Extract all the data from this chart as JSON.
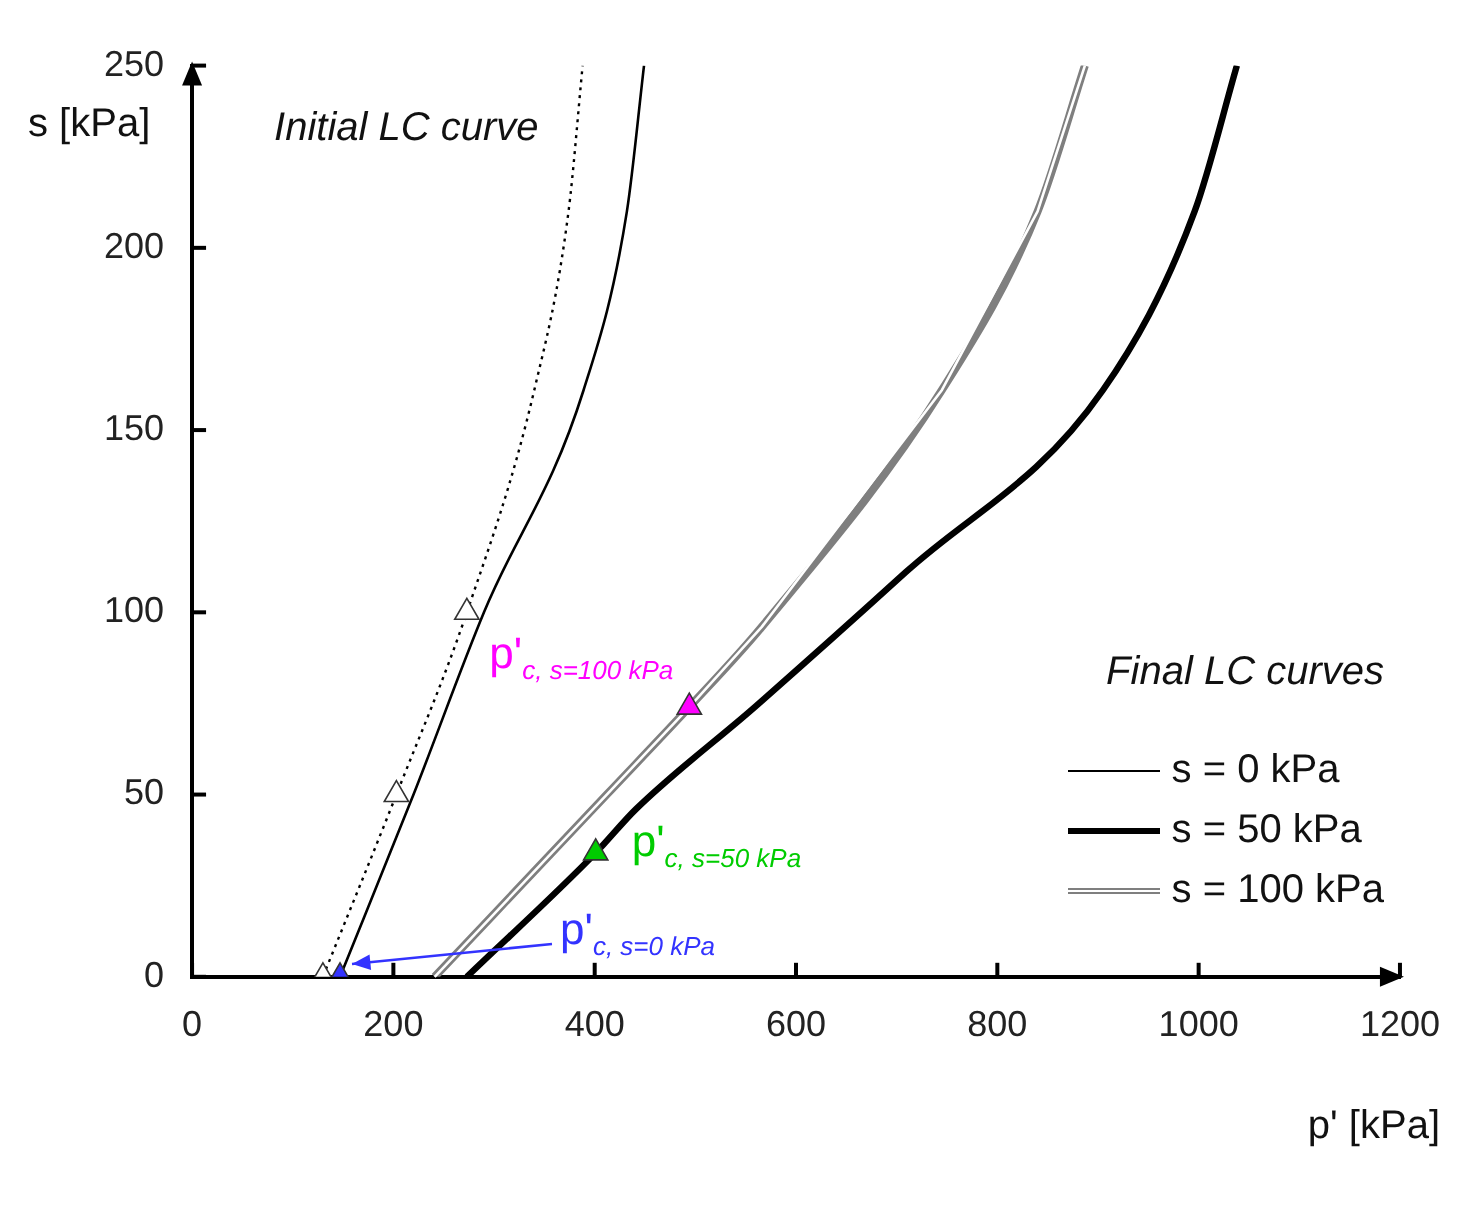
{
  "chart_data": {
    "type": "line",
    "xlabel": "p' [kPa]",
    "ylabel": "s [kPa]",
    "legend_title": "Final LC curves",
    "legend": "bottom right",
    "grid": false,
    "marker": "none",
    "xlim": [
      0,
      1200
    ],
    "xticks": [
      0,
      200,
      400,
      600,
      800,
      1000,
      1200
    ],
    "ylim": [
      0,
      250
    ],
    "yticks": [
      0,
      50,
      100,
      150,
      200,
      250
    ],
    "series": [
      {
        "name": "Initial LC curve",
        "line_style": "dotted",
        "color": "#000000",
        "x": [
          130,
          203,
          273,
          340,
          374,
          388
        ],
        "values": [
          0,
          50,
          100,
          161,
          210,
          250
        ]
      },
      {
        "type": "scatter",
        "marker": "triangle",
        "color": "#ffffff",
        "x": [
          130,
          203,
          273
        ],
        "values": [
          0,
          50,
          100
        ]
      },
      {
        "name": "s = 0 kPa",
        "color": "#000000",
        "x": [
          147,
          220,
          290,
          389,
          432,
          449
        ],
        "values": [
          0,
          50,
          100,
          161,
          210,
          250
        ]
      },
      {
        "name": "s = 50 kPa",
        "color": "#000000",
        "x": [
          273,
          401,
          441,
          559,
          709,
          905,
          996,
          1038
        ],
        "values": [
          0,
          34,
          46,
          74,
          111,
          161,
          210,
          250
        ]
      },
      {
        "name": "s = 100 kPa",
        "color": "#7f7f7f",
        "x": [
          241,
          412,
          494,
          566,
          745,
          840,
          887
        ],
        "values": [
          0,
          50,
          74,
          96,
          161,
          210,
          250
        ]
      },
      {
        "type": "scatter",
        "marker": "triangle",
        "colors": [
          "#3333ff",
          "#00cc00",
          "#ff00ff"
        ],
        "x": [
          147,
          401,
          494
        ],
        "values": [
          0,
          34,
          74
        ]
      }
    ],
    "annotations": [
      {
        "text": "p'$_{c, s=0 kPa}$",
        "x": 147,
        "y": 0
      },
      {
        "text": "p'$_{c, s=50 kPa}$",
        "x": 401,
        "y": 34
      },
      {
        "text": "p'$_{c, s=100 kPa}$",
        "x": 494,
        "y": 74
      }
    ]
  }
}
